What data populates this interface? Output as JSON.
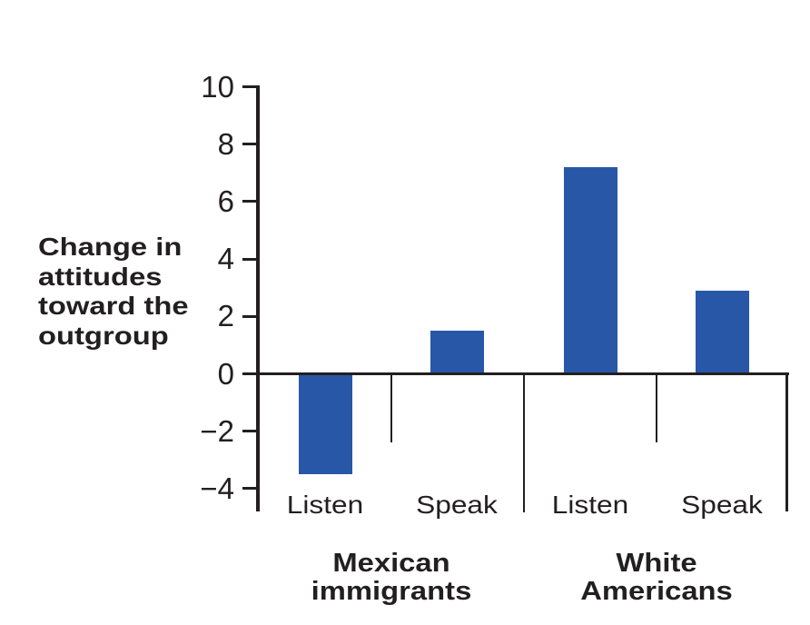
{
  "chart_data": {
    "type": "bar",
    "title": "",
    "ylabel": "Change in attitudes toward the outgroup",
    "ylabel_display": "Change in\nattitudes\ntoward the\noutgroup",
    "ylim": [
      -4,
      10
    ],
    "yticks": [
      10,
      8,
      6,
      4,
      2,
      0,
      -2,
      -4
    ],
    "ytick_labels": [
      "10",
      "8",
      "6",
      "4",
      "2",
      "0",
      "−2",
      "−4"
    ],
    "bar_color": "#2857a8",
    "axis_color": "#231f20",
    "legend": null,
    "grid": false,
    "groups": [
      {
        "label": "Mexican immigrants",
        "label_display": "Mexican\nimmigrants",
        "bars": [
          {
            "category": "Listen",
            "value": -3.5
          },
          {
            "category": "Speak",
            "value": 1.5
          }
        ]
      },
      {
        "label": "White Americans",
        "label_display": "White\nAmericans",
        "bars": [
          {
            "category": "Listen",
            "value": 7.2
          },
          {
            "category": "Speak",
            "value": 2.9
          }
        ]
      }
    ]
  }
}
